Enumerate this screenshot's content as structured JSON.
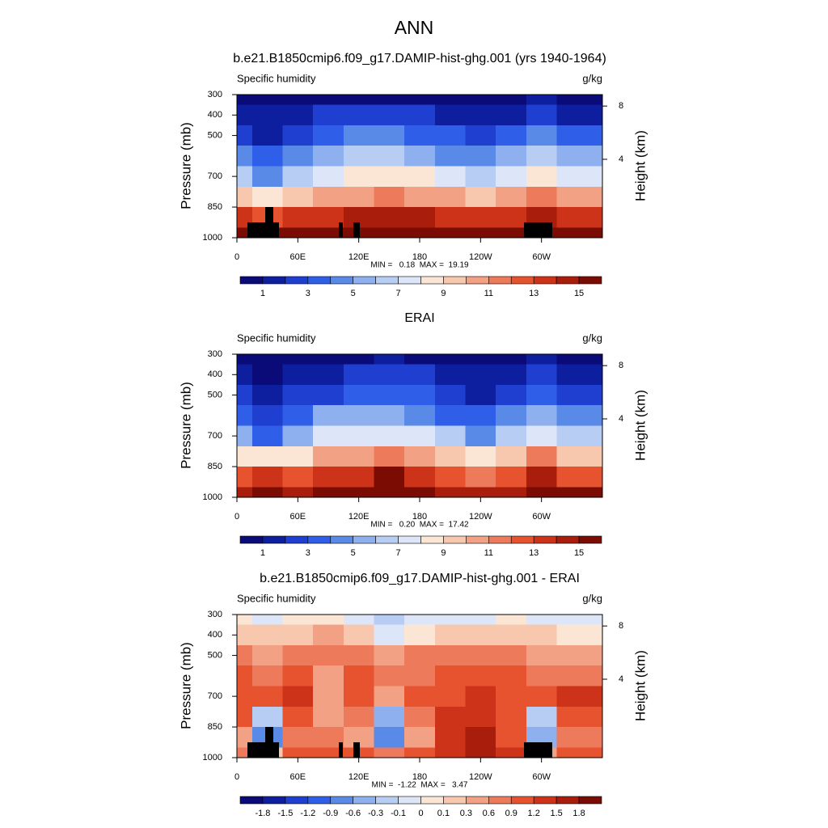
{
  "suptitle": "ANN",
  "chart_data": [
    {
      "type": "contour",
      "title": "b.e21.B1850cmip6.f09_g17.DAMIP-hist-ghg.001 (yrs 1940-1964)",
      "left_label": "Specific humidity",
      "right_label": "g/kg",
      "ylabel": "Pressure (mb)",
      "y2label": "Height (km)",
      "stats_label": "MIN =   0.18  MAX =  19.19",
      "x": [
        0,
        30,
        60,
        90,
        120,
        150,
        180,
        210,
        240,
        270,
        300,
        330
      ],
      "y": [
        300,
        400,
        500,
        600,
        700,
        800,
        900,
        1000
      ],
      "values": [
        [
          0.6,
          0.5,
          0.6,
          0.8,
          0.9,
          0.9,
          0.8,
          0.7,
          0.6,
          0.8,
          1.0,
          0.7
        ],
        [
          1.6,
          1.0,
          1.5,
          2.0,
          2.3,
          2.3,
          2.0,
          1.6,
          1.4,
          1.8,
          2.4,
          1.8
        ],
        [
          2.8,
          1.8,
          2.8,
          3.6,
          4.0,
          4.0,
          3.6,
          3.0,
          2.5,
          3.2,
          4.2,
          3.2
        ],
        [
          4.5,
          3.0,
          4.5,
          5.6,
          6.0,
          6.0,
          5.6,
          4.8,
          4.0,
          5.0,
          6.5,
          5.0
        ],
        [
          6.5,
          4.8,
          6.5,
          7.8,
          8.2,
          8.4,
          8.0,
          7.2,
          6.2,
          7.4,
          8.8,
          7.2
        ],
        [
          9.5,
          8.5,
          9.5,
          10.5,
          10.8,
          11.0,
          10.8,
          10.2,
          9.6,
          10.2,
          11.5,
          10.0
        ],
        [
          13.0,
          12.5,
          13.0,
          13.8,
          14.0,
          14.2,
          14.0,
          13.6,
          13.4,
          13.6,
          14.4,
          13.4
        ],
        [
          15.5,
          15.2,
          15.6,
          16.2,
          16.4,
          16.6,
          16.4,
          16.0,
          15.8,
          16.2,
          16.8,
          16.0
        ]
      ],
      "xlim": [
        0,
        360
      ],
      "xticks": [
        0,
        {
          "value": 60,
          "label": "60E"
        },
        {
          "value": 120,
          "label": "120E"
        },
        180,
        {
          "value": 240,
          "label": "120W"
        },
        {
          "value": 300,
          "label": "60W"
        }
      ],
      "ylim": [
        1000,
        300
      ],
      "yticks": [
        300,
        400,
        500,
        700,
        850,
        1000
      ],
      "y2ticks": [
        4,
        8
      ],
      "colorbar": {
        "levels": [
          1,
          2,
          3,
          4,
          5,
          6,
          7,
          8,
          9,
          10,
          11,
          12,
          13,
          14,
          15
        ],
        "label_every": 2,
        "colors": [
          "#0a0a78",
          "#0d1f9e",
          "#1f3fd0",
          "#2f5fe8",
          "#5a8ae8",
          "#8fb0ef",
          "#b8cdf4",
          "#dce6f8",
          "#fbe6d6",
          "#f7c7ae",
          "#f2a185",
          "#ee7a5c",
          "#e8532f",
          "#cc3318",
          "#a81d0b",
          "#7a0c04"
        ]
      }
    },
    {
      "type": "contour",
      "title": "ERAI",
      "left_label": "Specific humidity",
      "right_label": "g/kg",
      "ylabel": "Pressure (mb)",
      "y2label": "Height (km)",
      "stats_label": "MIN =   0.20  MAX =  17.42",
      "x": [
        0,
        30,
        60,
        90,
        120,
        150,
        180,
        210,
        240,
        270,
        300,
        330
      ],
      "y": [
        300,
        400,
        500,
        600,
        700,
        800,
        900,
        1000
      ],
      "values": [
        [
          0.5,
          0.5,
          0.6,
          0.7,
          0.9,
          1.0,
          0.9,
          0.7,
          0.6,
          0.7,
          1.0,
          0.6
        ],
        [
          1.4,
          0.9,
          1.3,
          1.7,
          2.1,
          2.4,
          2.0,
          1.5,
          1.3,
          1.6,
          2.3,
          1.7
        ],
        [
          2.2,
          1.3,
          2.1,
          2.8,
          3.4,
          3.5,
          3.0,
          2.4,
          1.8,
          2.6,
          3.7,
          2.7
        ],
        [
          3.6,
          2.2,
          3.5,
          5.1,
          5.1,
          5.3,
          4.8,
          3.9,
          3.0,
          4.1,
          5.7,
          4.2
        ],
        [
          5.5,
          3.9,
          5.2,
          7.4,
          7.3,
          7.9,
          7.1,
          6.2,
          4.9,
          6.4,
          7.8,
          6.0
        ],
        [
          8.6,
          8.8,
          8.4,
          10.2,
          10.2,
          11.5,
          10.2,
          9.0,
          8.2,
          9.2,
          11.7,
          9.0
        ],
        [
          12.5,
          13.3,
          12.2,
          13.2,
          13.6,
          15.1,
          13.6,
          12.3,
          11.9,
          12.5,
          14.8,
          12.6
        ],
        [
          14.7,
          15.0,
          14.6,
          15.3,
          15.5,
          16.0,
          15.4,
          14.6,
          14.2,
          14.9,
          16.3,
          15.0
        ]
      ],
      "xlim": [
        0,
        360
      ],
      "xticks": [
        0,
        {
          "value": 60,
          "label": "60E"
        },
        {
          "value": 120,
          "label": "120E"
        },
        180,
        {
          "value": 240,
          "label": "120W"
        },
        {
          "value": 300,
          "label": "60W"
        }
      ],
      "ylim": [
        1000,
        300
      ],
      "yticks": [
        300,
        400,
        500,
        700,
        850,
        1000
      ],
      "y2ticks": [
        4,
        8
      ],
      "colorbar": {
        "levels": [
          1,
          2,
          3,
          4,
          5,
          6,
          7,
          8,
          9,
          10,
          11,
          12,
          13,
          14,
          15
        ],
        "label_every": 2,
        "colors": [
          "#0a0a78",
          "#0d1f9e",
          "#1f3fd0",
          "#2f5fe8",
          "#5a8ae8",
          "#8fb0ef",
          "#b8cdf4",
          "#dce6f8",
          "#fbe6d6",
          "#f7c7ae",
          "#f2a185",
          "#ee7a5c",
          "#e8532f",
          "#cc3318",
          "#a81d0b",
          "#7a0c04"
        ]
      }
    },
    {
      "type": "contour",
      "title": "b.e21.B1850cmip6.f09_g17.DAMIP-hist-ghg.001 - ERAI",
      "left_label": "Specific humidity",
      "right_label": "g/kg",
      "ylabel": "Pressure (mb)",
      "y2label": "Height (km)",
      "stats_label": "MIN =  -1.22  MAX =   3.47",
      "x": [
        0,
        30,
        60,
        90,
        120,
        150,
        180,
        210,
        240,
        270,
        300,
        330
      ],
      "y": [
        300,
        400,
        500,
        600,
        700,
        800,
        900,
        1000
      ],
      "values": [
        [
          0.05,
          -0.05,
          0.05,
          0.08,
          -0.02,
          -0.15,
          -0.05,
          -0.02,
          -0.05,
          0.05,
          -0.05,
          -0.03
        ],
        [
          0.2,
          0.1,
          0.2,
          0.3,
          0.2,
          -0.1,
          0.05,
          0.1,
          0.1,
          0.2,
          0.1,
          0.05
        ],
        [
          0.6,
          0.5,
          0.7,
          0.8,
          0.6,
          0.5,
          0.6,
          0.6,
          0.7,
          0.6,
          0.5,
          0.5
        ],
        [
          0.9,
          0.8,
          1.0,
          0.5,
          0.9,
          0.7,
          0.8,
          0.9,
          1.0,
          0.9,
          0.8,
          0.8
        ],
        [
          1.0,
          0.9,
          1.3,
          0.4,
          0.9,
          0.5,
          0.9,
          1.0,
          1.3,
          1.0,
          1.0,
          1.2
        ],
        [
          0.9,
          -0.3,
          1.1,
          0.3,
          0.6,
          -0.5,
          0.6,
          1.2,
          1.4,
          1.0,
          -0.2,
          1.0
        ],
        [
          0.5,
          -0.8,
          0.8,
          0.6,
          0.4,
          -0.9,
          0.4,
          1.3,
          1.5,
          1.1,
          -0.4,
          0.8
        ],
        [
          0.8,
          0.2,
          1.0,
          0.9,
          0.9,
          0.6,
          1.0,
          1.4,
          1.6,
          1.3,
          0.5,
          1.0
        ]
      ],
      "xlim": [
        0,
        360
      ],
      "xticks": [
        0,
        {
          "value": 60,
          "label": "60E"
        },
        {
          "value": 120,
          "label": "120E"
        },
        180,
        {
          "value": 240,
          "label": "120W"
        },
        {
          "value": 300,
          "label": "60W"
        }
      ],
      "ylim": [
        1000,
        300
      ],
      "yticks": [
        300,
        400,
        500,
        700,
        850,
        1000
      ],
      "y2ticks": [
        4,
        8
      ],
      "colorbar": {
        "levels": [
          -1.8,
          -1.5,
          -1.2,
          -0.9,
          -0.6,
          -0.3,
          -0.1,
          0,
          0.1,
          0.3,
          0.6,
          0.9,
          1.2,
          1.5,
          1.8
        ],
        "label_every": 1,
        "colors": [
          "#0a0a78",
          "#0d1f9e",
          "#1f3fd0",
          "#2f5fe8",
          "#5a8ae8",
          "#8fb0ef",
          "#b8cdf4",
          "#dce6f8",
          "#fbe6d6",
          "#f7c7ae",
          "#f2a185",
          "#ee7a5c",
          "#e8532f",
          "#cc3318",
          "#a81d0b",
          "#7a0c04"
        ]
      }
    }
  ]
}
